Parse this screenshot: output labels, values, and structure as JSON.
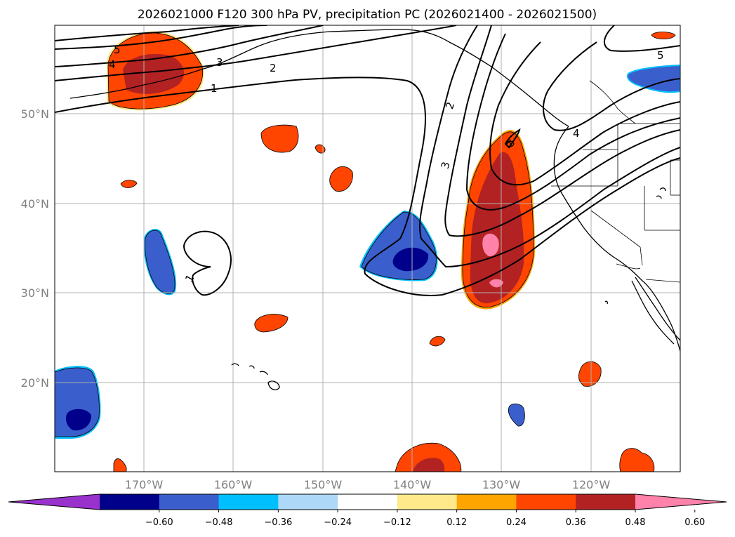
{
  "title": "2026021000 F120 300 hPa PV, precipitation PC (2026021400 - 2026021500)",
  "lat_labels": [
    "50°N",
    "40°N",
    "30°N",
    "20°N"
  ],
  "lon_labels": [
    "170°W",
    "160°W",
    "150°W",
    "140°W",
    "130°W",
    "120°W"
  ],
  "colorbar": {
    "colors": [
      "#9932cc",
      "#00008b",
      "#3a5fcd",
      "#00bfff",
      "#add8f7",
      "#ffffff",
      "#ffe98a",
      "#ffa500",
      "#ff4500",
      "#b22222",
      "#ff82ab"
    ],
    "tick_labels": [
      "−0.60",
      "−0.48",
      "−0.36",
      "−0.24",
      "−0.12",
      "0.12",
      "0.24",
      "0.36",
      "0.48",
      "0.60"
    ]
  },
  "contour_labels": [
    "5",
    "4",
    "3",
    "2",
    "1",
    "2",
    "3",
    "6",
    "4",
    "5",
    "1"
  ],
  "colors": {
    "red": "#ff4500",
    "darkred": "#b22222",
    "pink": "#ff82ab",
    "blue": "#3a5fcd",
    "navy": "#00008b",
    "cyan": "#00bfff",
    "yellow": "#ffe98a",
    "orange": "#ffa500",
    "grid": "#b0b0b0"
  }
}
